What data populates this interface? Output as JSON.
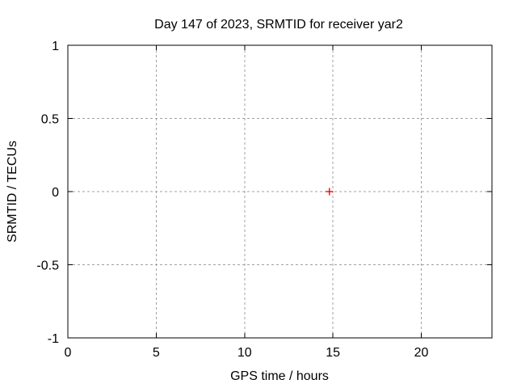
{
  "chart_data": {
    "type": "scatter",
    "title": "Day 147 of 2023, SRMTID for receiver yar2",
    "xlabel": "GPS time / hours",
    "ylabel": "SRMTID / TECUs",
    "xlim": [
      0,
      24
    ],
    "ylim": [
      -1,
      1
    ],
    "xticks": [
      0,
      5,
      10,
      15,
      20
    ],
    "xtick_labels": [
      "0",
      "5",
      "10",
      "15",
      "20"
    ],
    "yticks": [
      1,
      0.5,
      0,
      -0.5,
      -1
    ],
    "ytick_labels": [
      "1",
      "0.5",
      "0",
      "-0.5",
      "-1"
    ],
    "grid": true,
    "legend": "none",
    "series": [
      {
        "name": "SRMTID",
        "marker": "plus",
        "color": "#ff0000",
        "points": [
          {
            "x": 14.8,
            "y": 0.0
          }
        ]
      }
    ],
    "colors": {
      "background": "#ffffff",
      "border": "#000000",
      "grid": "#a0a0a0",
      "text": "#000000",
      "point": "#ff0000"
    }
  }
}
